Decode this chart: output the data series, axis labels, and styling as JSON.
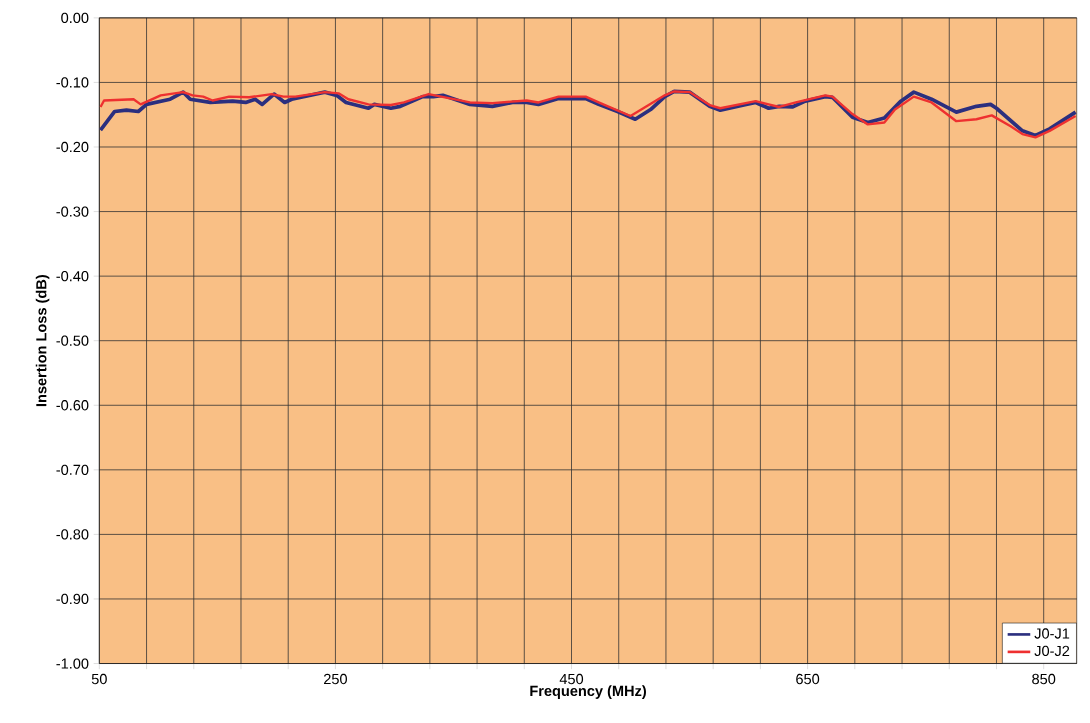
{
  "chart_data": {
    "type": "line",
    "xlabel": "Frequency (MHz)",
    "ylabel": "Insertion Loss (dB)",
    "xlim": [
      50,
      878
    ],
    "ylim": [
      -1,
      0
    ],
    "xticks": [
      50,
      {
        "value": 90,
        "label": null
      },
      {
        "value": 130,
        "label": null
      },
      {
        "value": 170,
        "label": null
      },
      {
        "value": 210,
        "label": null
      },
      250,
      {
        "value": 290,
        "label": null
      },
      {
        "value": 330,
        "label": null
      },
      {
        "value": 370,
        "label": null
      },
      {
        "value": 410,
        "label": null
      },
      450,
      {
        "value": 490,
        "label": null
      },
      {
        "value": 530,
        "label": null
      },
      {
        "value": 570,
        "label": null
      },
      {
        "value": 610,
        "label": null
      },
      650,
      {
        "value": 690,
        "label": null
      },
      {
        "value": 730,
        "label": null
      },
      {
        "value": 770,
        "label": null
      },
      {
        "value": 810,
        "label": null
      },
      850
    ],
    "yticks": [
      {
        "value": 0,
        "label": "0.00"
      },
      {
        "value": -0.1,
        "label": "-0.10"
      },
      {
        "value": -0.2,
        "label": "-0.20"
      },
      {
        "value": -0.3,
        "label": "-0.30"
      },
      {
        "value": -0.4,
        "label": "-0.40"
      },
      {
        "value": -0.5,
        "label": "-0.50"
      },
      {
        "value": -0.6,
        "label": "-0.60"
      },
      {
        "value": -0.7,
        "label": "-0.70"
      },
      {
        "value": -0.8,
        "label": "-0.80"
      },
      {
        "value": -0.9,
        "label": "-0.90"
      },
      {
        "value": -1,
        "label": "-1.00"
      }
    ],
    "grid": true,
    "legend": "bottom right",
    "series": [
      {
        "name": "J0-J1",
        "color": "#2b2f7f",
        "x": [
          51,
          63,
          73,
          83,
          90,
          110,
          121,
          127,
          144,
          163,
          174,
          182,
          188,
          198,
          207,
          213,
          241,
          251,
          259,
          278,
          283,
          297,
          305,
          324,
          333,
          341,
          364,
          383,
          400,
          412,
          422,
          439,
          462,
          473,
          489,
          504,
          517,
          529,
          537,
          550,
          567,
          576,
          596,
          606,
          617,
          626,
          637,
          648,
          665,
          671,
          688,
          701,
          715,
          729,
          740,
          755,
          776,
          793,
          805,
          810,
          832,
          843,
          855,
          877
        ],
        "values": [
          -0.174,
          -0.145,
          -0.143,
          -0.145,
          -0.134,
          -0.126,
          -0.115,
          -0.126,
          -0.131,
          -0.129,
          -0.131,
          -0.126,
          -0.134,
          -0.118,
          -0.131,
          -0.126,
          -0.115,
          -0.12,
          -0.131,
          -0.14,
          -0.134,
          -0.14,
          -0.137,
          -0.122,
          -0.122,
          -0.12,
          -0.134,
          -0.137,
          -0.131,
          -0.131,
          -0.134,
          -0.125,
          -0.125,
          -0.134,
          -0.145,
          -0.157,
          -0.142,
          -0.122,
          -0.114,
          -0.115,
          -0.137,
          -0.143,
          -0.135,
          -0.131,
          -0.14,
          -0.137,
          -0.138,
          -0.129,
          -0.122,
          -0.123,
          -0.154,
          -0.162,
          -0.155,
          -0.129,
          -0.115,
          -0.126,
          -0.146,
          -0.137,
          -0.134,
          -0.14,
          -0.175,
          -0.182,
          -0.172,
          -0.146
        ]
      },
      {
        "name": "J0-J2",
        "color": "#ee3030",
        "x": [
          51,
          54,
          79,
          85,
          102,
          121,
          129,
          138,
          146,
          160,
          177,
          196,
          206,
          216,
          241,
          253,
          261,
          278,
          297,
          308,
          329,
          364,
          383,
          412,
          422,
          439,
          462,
          473,
          500,
          529,
          537,
          550,
          567,
          576,
          606,
          617,
          626,
          640,
          665,
          671,
          688,
          701,
          715,
          724,
          740,
          755,
          776,
          793,
          806,
          822,
          832,
          843,
          855,
          877
        ],
        "values": [
          -0.138,
          -0.128,
          -0.126,
          -0.134,
          -0.12,
          -0.115,
          -0.12,
          -0.122,
          -0.128,
          -0.122,
          -0.123,
          -0.118,
          -0.122,
          -0.122,
          -0.115,
          -0.117,
          -0.126,
          -0.134,
          -0.135,
          -0.131,
          -0.118,
          -0.131,
          -0.132,
          -0.128,
          -0.131,
          -0.122,
          -0.122,
          -0.131,
          -0.152,
          -0.12,
          -0.114,
          -0.115,
          -0.135,
          -0.14,
          -0.129,
          -0.134,
          -0.138,
          -0.131,
          -0.12,
          -0.122,
          -0.149,
          -0.165,
          -0.162,
          -0.142,
          -0.122,
          -0.131,
          -0.16,
          -0.157,
          -0.151,
          -0.168,
          -0.18,
          -0.185,
          -0.175,
          -0.152
        ]
      }
    ]
  }
}
